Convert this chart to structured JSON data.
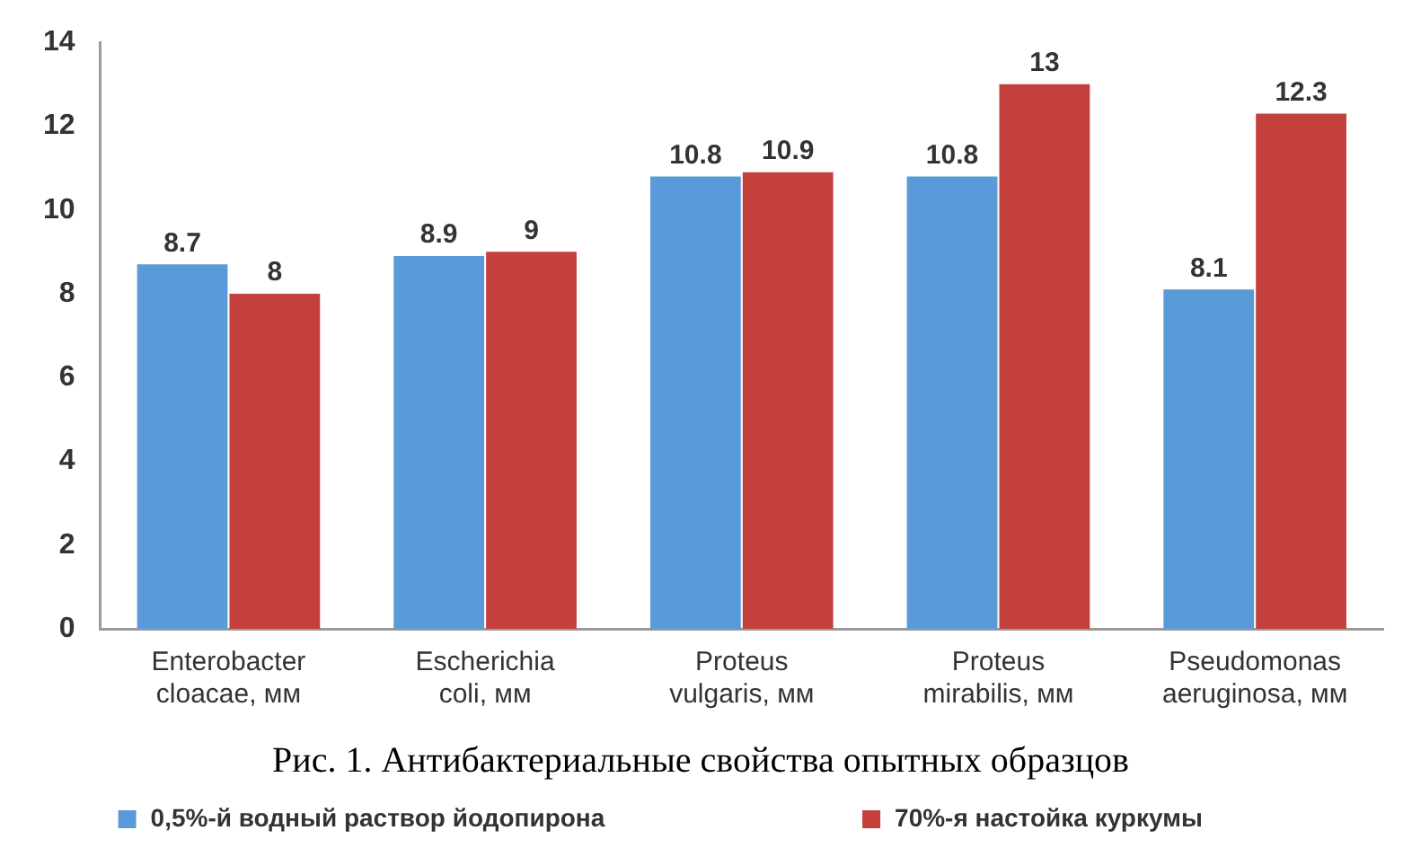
{
  "chart_data": {
    "type": "bar",
    "title": "Рис. 1. Антибактериальные свойства опытных образцов",
    "categories": [
      "Enterobacter cloacae, мм",
      "Escherichia coli, мм",
      "Proteus vulgaris, мм",
      "Proteus mirabilis, мм",
      "Pseudomonas aeruginosa, мм"
    ],
    "series": [
      {
        "name": "0,5%-й водный раствор йодопирона",
        "color": "#5a9ad8",
        "values": [
          8.7,
          8.9,
          10.8,
          10.8,
          8.1
        ]
      },
      {
        "name": "70%-я настойка куркумы",
        "color": "#c4403d",
        "values": [
          8,
          9,
          10.9,
          13,
          12.3
        ]
      }
    ],
    "ylim": [
      0,
      14
    ],
    "yticks": [
      0,
      2,
      4,
      6,
      8,
      10,
      12,
      14
    ],
    "data_labels": true,
    "legend": "bottom"
  }
}
